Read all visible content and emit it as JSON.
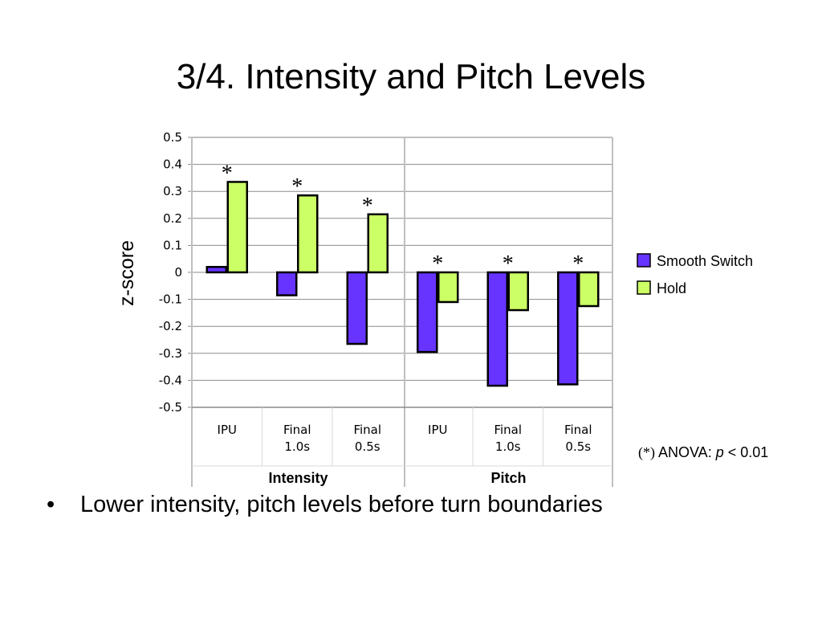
{
  "slide": {
    "title": "3/4. Intensity and Pitch Levels",
    "bullet_symbol": "•",
    "bullet_text": "Lower intensity, pitch levels before turn boundaries"
  },
  "chart_data": {
    "type": "bar",
    "ylabel": "z-score",
    "ylim": [
      -0.5,
      0.5
    ],
    "yticks": [
      "0.5",
      "0.4",
      "0.3",
      "0.2",
      "0.1",
      "0",
      "-0.1",
      "-0.2",
      "-0.3",
      "-0.4",
      "-0.5"
    ],
    "ytick_values": [
      0.5,
      0.4,
      0.3,
      0.2,
      0.1,
      0,
      -0.1,
      -0.2,
      -0.3,
      -0.4,
      -0.5
    ],
    "grid": true,
    "legend_position": "right",
    "groups": [
      {
        "name": "Intensity",
        "categories": [
          [
            "IPU"
          ],
          [
            "Final",
            "1.0s"
          ],
          [
            "Final",
            "0.5s"
          ]
        ]
      },
      {
        "name": "Pitch",
        "categories": [
          [
            "IPU"
          ],
          [
            "Final",
            "1.0s"
          ],
          [
            "Final",
            "0.5s"
          ]
        ]
      }
    ],
    "series": [
      {
        "name": "Smooth Switch",
        "color": "#6633ff",
        "values": [
          0.02,
          -0.085,
          -0.265,
          -0.295,
          -0.42,
          -0.415
        ]
      },
      {
        "name": "Hold",
        "color": "#ccff66",
        "values": [
          0.335,
          0.285,
          0.215,
          -0.11,
          -0.14,
          -0.125
        ]
      }
    ],
    "significance_marker": "*",
    "significant": [
      true,
      true,
      true,
      true,
      true,
      true
    ],
    "note": {
      "marker": "(*)",
      "text": " ANOVA: ",
      "p_symbol": "p",
      "threshold": " < 0.01"
    }
  }
}
